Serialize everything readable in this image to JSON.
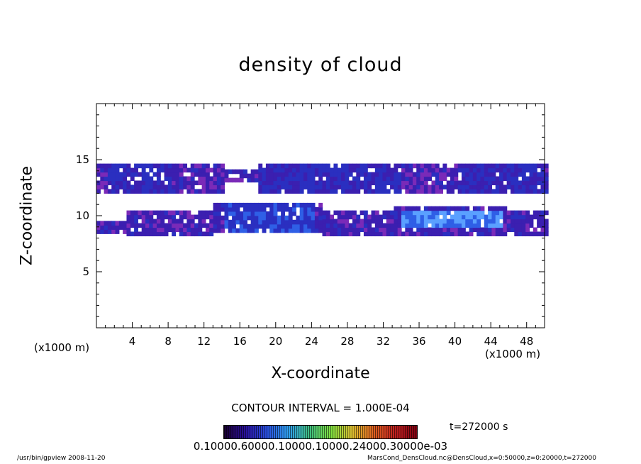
{
  "chart_data": {
    "type": "heatmap",
    "title": "density of cloud",
    "xlabel": "X-coordinate",
    "ylabel": "Z-coordinate",
    "x_unit": "(x1000 m)",
    "y_unit": "(x1000 m)",
    "xlim": [
      0,
      50
    ],
    "ylim": [
      0,
      20
    ],
    "x_ticks": [
      4,
      8,
      12,
      16,
      20,
      24,
      28,
      32,
      36,
      40,
      44,
      48
    ],
    "y_ticks": [
      5,
      10,
      15
    ],
    "contour_interval": "CONTOUR INTERVAL = 1.000E-04",
    "colorbar_labels": "0.10000.60000.10000.10000.24000.30000e-03",
    "time": "t=272000 s",
    "cloud_layers": [
      {
        "name": "upper",
        "z_center": 13.2,
        "x_start": 0,
        "x_end": 50
      },
      {
        "name": "lower",
        "z_center": 9.4,
        "x_start": 0,
        "x_end": 50
      }
    ],
    "grid": false
  },
  "footer": {
    "left": "/usr/bin/gpview   2008-11-20",
    "right": "MarsCond_DensCloud.nc@DensCloud,x=0:50000,z=0:20000,t=272000"
  }
}
